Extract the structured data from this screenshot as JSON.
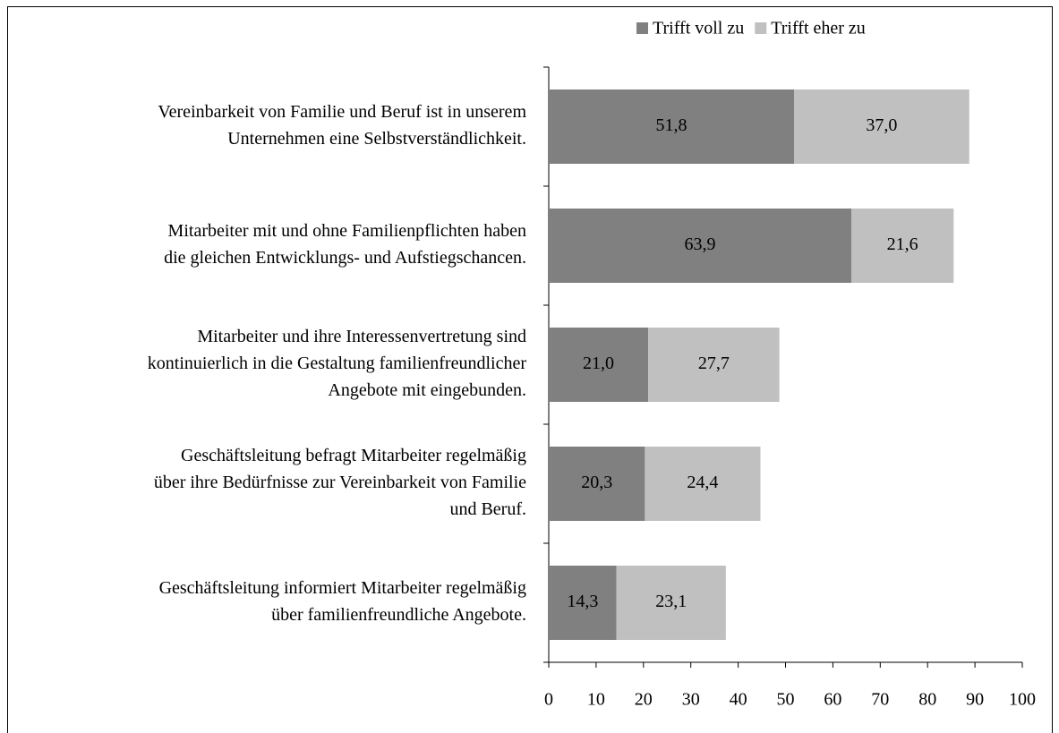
{
  "chart_data": {
    "type": "stacked-bar-horizontal",
    "categories": [
      [
        "Vereinbarkeit von Familie und Beruf ist in unserem",
        "Unternehmen eine Selbstverständlichkeit."
      ],
      [
        "Mitarbeiter mit und ohne Familienpflichten haben",
        "die gleichen Entwicklungs- und Aufstiegschancen."
      ],
      [
        "Mitarbeiter und ihre Interessenvertretung sind",
        "kontinuierlich in die Gestaltung familienfreundlicher",
        "Angebote mit eingebunden."
      ],
      [
        "Geschäftsleitung befragt Mitarbeiter regelmäßig",
        "über ihre Bedürfnisse zur Vereinbarkeit von Familie",
        "und Beruf."
      ],
      [
        "Geschäftsleitung informiert Mitarbeiter regelmäßig",
        "über familienfreundliche Angebote."
      ]
    ],
    "series": [
      {
        "name": "Trifft voll zu",
        "color": "#808080",
        "values": [
          51.8,
          63.9,
          21.0,
          20.3,
          14.3
        ],
        "value_labels": [
          "51,8",
          "63,9",
          "21,0",
          "20,3",
          "14,3"
        ]
      },
      {
        "name": "Trifft eher zu",
        "color": "#c0c0c0",
        "values": [
          37.0,
          21.6,
          27.7,
          24.4,
          23.1
        ],
        "value_labels": [
          "37,0",
          "21,6",
          "27,7",
          "24,4",
          "23,1"
        ]
      }
    ],
    "xlim": [
      0,
      100
    ],
    "xticks": [
      0,
      10,
      20,
      30,
      40,
      50,
      60,
      70,
      80,
      90,
      100
    ],
    "legend": "top-right"
  }
}
